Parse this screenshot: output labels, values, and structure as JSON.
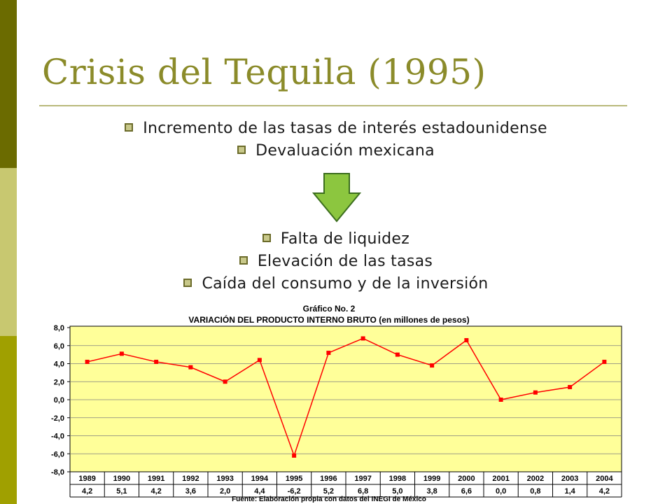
{
  "slide": {
    "title": "Crisis del Tequila (1995)",
    "bullets_top": [
      "Incremento de las tasas de interés estadounidense",
      "Devaluación mexicana"
    ],
    "bullets_bottom": [
      "Falta de liquidez",
      "Elevación de las tasas",
      "Caída del consumo y de la inversión"
    ],
    "colors": {
      "title": "#8b8b2a",
      "arrow_fill": "#8cc63f",
      "strip_dark": "#6b6b00",
      "strip_light": "#c8c870",
      "strip_mid": "#a0a000"
    }
  },
  "chart_data": {
    "type": "line",
    "title": "Gráfico No. 2",
    "subtitle": "VARIACIÓN DEL PRODUCTO INTERNO BRUTO (en millones de pesos)",
    "source": "Fuente: Elaboración propia con datos del INEGI de México",
    "categories": [
      "1989",
      "1990",
      "1991",
      "1992",
      "1993",
      "1994",
      "1995",
      "1996",
      "1997",
      "1998",
      "1999",
      "2000",
      "2001",
      "2002",
      "2003",
      "2004"
    ],
    "values": [
      4.2,
      5.1,
      4.2,
      3.6,
      2.0,
      4.4,
      -6.2,
      5.2,
      6.8,
      5.0,
      3.8,
      6.6,
      0.0,
      0.8,
      1.4,
      4.2
    ],
    "value_labels": [
      "4,2",
      "5,1",
      "4,2",
      "3,6",
      "2,0",
      "4,4",
      "-6,2",
      "5,2",
      "6,8",
      "5,0",
      "3,8",
      "6,6",
      "0,0",
      "0,8",
      "1,4",
      "4,2"
    ],
    "y_ticks": [
      "8,0",
      "6,0",
      "4,0",
      "2,0",
      "0,0",
      "-2,0",
      "-4,0",
      "-6,0",
      "-8,0"
    ],
    "ylim": [
      -8,
      8
    ],
    "grid": true,
    "colors": {
      "plot_bg": "#ffff99",
      "line": "#ff0000",
      "grid": "#808080"
    }
  }
}
